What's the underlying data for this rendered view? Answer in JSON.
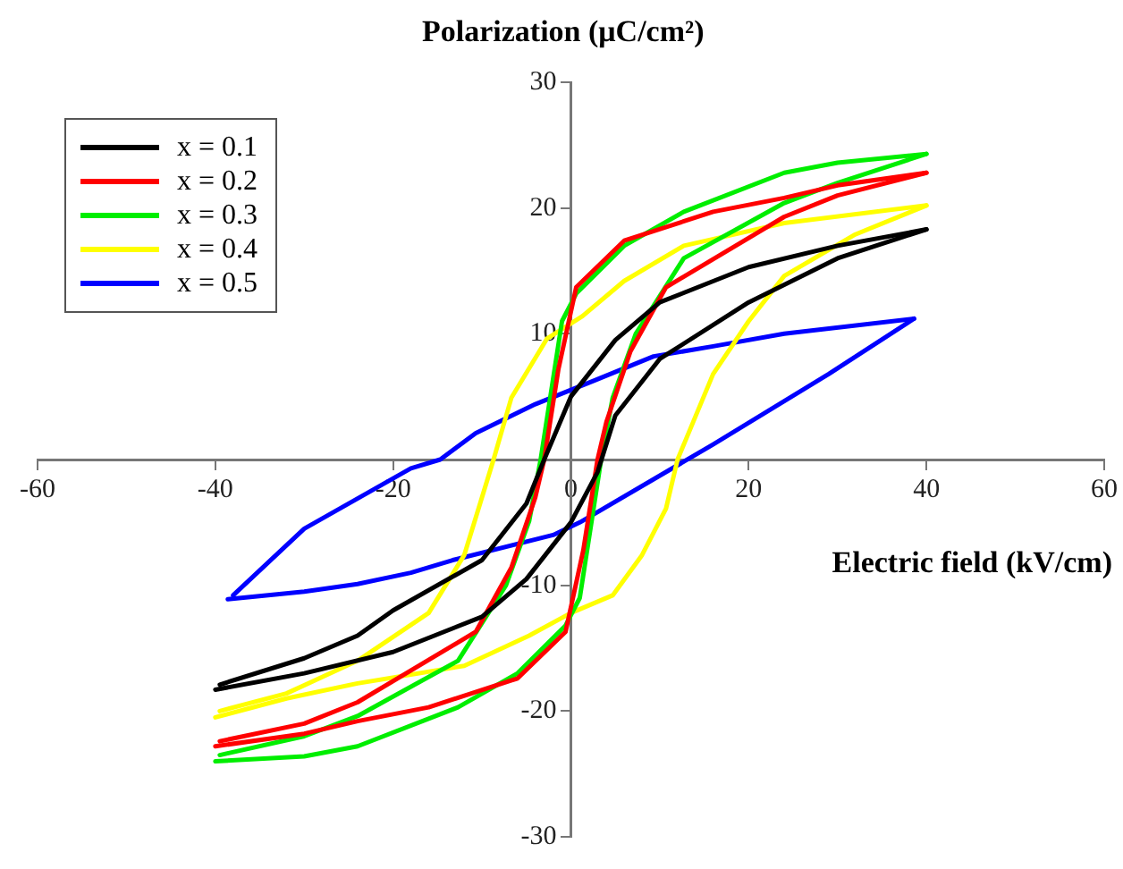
{
  "chart_data": {
    "type": "line",
    "xlabel": "Electric field (kV/cm)",
    "ylabel": "Polarization (μC/cm²)",
    "xlim": [
      -60,
      60
    ],
    "xticks": [
      -60,
      -40,
      -20,
      0,
      20,
      40,
      60
    ],
    "ylim": [
      -30,
      30
    ],
    "yticks": [
      -30,
      -20,
      -10,
      {
        "value": 0,
        "label": null
      },
      10,
      20,
      30
    ],
    "grid": false,
    "legend": "top left",
    "marker": "none",
    "line_style": "solid",
    "series": [
      {
        "name": "x = 0.1",
        "color": "#000000",
        "x": [
          -40,
          -30,
          -20,
          -10,
          -5,
          0,
          3,
          5,
          10,
          20,
          30,
          40
        ],
        "values": [
          -18.3,
          -17,
          -15.3,
          -12.5,
          -9.5,
          -5,
          -1,
          3.5,
          8,
          12.5,
          16,
          18.3
        ]
      },
      {
        "color": "#000000",
        "x": [
          40,
          30,
          20,
          10,
          5,
          0,
          -3,
          -5,
          -10,
          -20,
          -24,
          -30,
          -39.5
        ],
        "values": [
          18.3,
          17,
          15.3,
          12.5,
          9.5,
          5,
          0,
          -3.5,
          -8,
          -12,
          -14,
          -15.8,
          -17.9
        ]
      },
      {
        "name": "x = 0.2",
        "color": "#ff0000",
        "x": [
          -40,
          -30,
          -24,
          -16,
          -6,
          -0.6,
          1.4,
          3,
          4,
          6.7,
          10.7,
          24,
          30,
          40
        ],
        "values": [
          -22.8,
          -21.8,
          -20.8,
          -19.7,
          -17.4,
          -13.7,
          -7.2,
          0,
          3,
          8.6,
          13.7,
          19.3,
          21,
          22.8
        ]
      },
      {
        "color": "#ff0000",
        "x": [
          40,
          30,
          24,
          16,
          6,
          0.6,
          -1.4,
          -3,
          -4,
          -6.7,
          -10.7,
          -24,
          -30,
          -39.5
        ],
        "values": [
          22.8,
          21.8,
          20.8,
          19.7,
          17.4,
          13.7,
          7.2,
          0,
          -3,
          -8.6,
          -13.7,
          -19.3,
          -21,
          -22.4
        ]
      },
      {
        "name": "x = 0.3",
        "color": "#00ee00",
        "x": [
          -40,
          -30,
          -24,
          -12.7,
          -6,
          -0.6,
          1,
          3.4,
          4.7,
          7.3,
          12.7,
          24,
          30,
          40
        ],
        "values": [
          -24,
          -23.6,
          -22.8,
          -19.7,
          -17,
          -13.2,
          -11,
          0,
          4.9,
          10,
          16,
          20.4,
          22,
          24.3
        ]
      },
      {
        "color": "#00ee00",
        "x": [
          40,
          30,
          24,
          12.7,
          6,
          0.6,
          -1,
          -3.4,
          -4.7,
          -7.3,
          -12.7,
          -24,
          -30,
          -39.5
        ],
        "values": [
          24.3,
          23.6,
          22.8,
          19.7,
          17,
          13.2,
          11,
          0,
          -4.9,
          -10,
          -16,
          -20.4,
          -22,
          -23.5
        ]
      },
      {
        "name": "x = 0.4",
        "color": "#ffff00",
        "x": [
          -40,
          -32,
          -24,
          -12,
          -4.7,
          0,
          4.7,
          8,
          10.7,
          12,
          16,
          20,
          24,
          32,
          40
        ],
        "values": [
          -20.5,
          -19,
          -17.8,
          -16.4,
          -14,
          -12.2,
          -10.8,
          -7.6,
          -3.9,
          0,
          6.8,
          11,
          14.6,
          17.9,
          20.2
        ]
      },
      {
        "color": "#ffff00",
        "x": [
          40,
          24,
          12.7,
          6,
          1.3,
          -2.7,
          -6.7,
          -8.7,
          -10,
          -12,
          -16,
          -24,
          -32,
          -39.5
        ],
        "values": [
          20.2,
          18.8,
          17,
          14.2,
          11.4,
          9.6,
          4.9,
          0,
          -3,
          -7.6,
          -12.2,
          -16,
          -18.6,
          -20
        ]
      },
      {
        "name": "x = 0.5",
        "color": "#0000ff",
        "x": [
          -38.6,
          -30,
          -24,
          -18,
          -13.3,
          -2,
          1,
          16,
          29,
          38.6
        ],
        "values": [
          -11.1,
          -10.5,
          -9.9,
          -9,
          -8,
          -6,
          -5,
          1.2,
          6.8,
          11.2
        ]
      },
      {
        "color": "#0000ff",
        "x": [
          38.6,
          24,
          16,
          9.3,
          2.7,
          -4,
          -10.7,
          -14.7,
          -18,
          -30,
          -38
        ],
        "values": [
          11.2,
          10,
          9,
          8.2,
          6.3,
          4.4,
          2.1,
          0,
          -0.7,
          -5.5,
          -10.8
        ]
      }
    ]
  }
}
